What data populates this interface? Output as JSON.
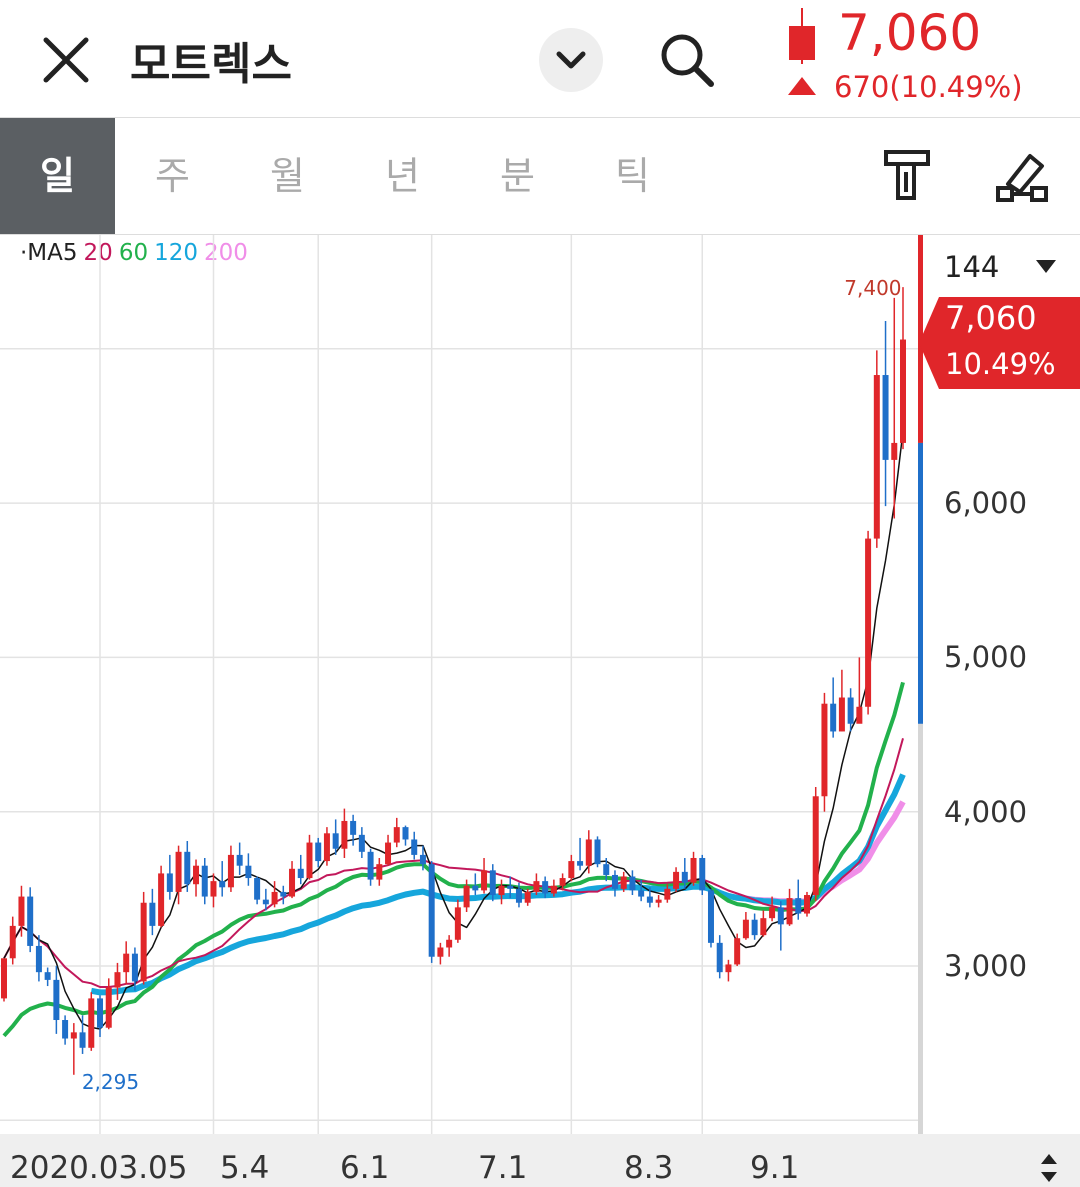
{
  "header": {
    "title": "모트렉스",
    "price": "7,060",
    "change": "670(10.49%)"
  },
  "tabs": [
    {
      "label": "일",
      "active": true
    },
    {
      "label": "주",
      "active": false
    },
    {
      "label": "월",
      "active": false
    },
    {
      "label": "년",
      "active": false
    },
    {
      "label": "분",
      "active": false
    },
    {
      "label": "틱",
      "active": false
    }
  ],
  "toolbar": {
    "indicator_icon": "tool-icon",
    "draw_icon": "pen-draw-icon"
  },
  "side": {
    "count": "144",
    "price_tag": "7,060",
    "pct_tag": "10.49%"
  },
  "legend": {
    "prefix": "·MA5",
    "items": [
      {
        "label": "20",
        "color": "#c2185b"
      },
      {
        "label": "60",
        "color": "#22b14c"
      },
      {
        "label": "120",
        "color": "#16a6dc"
      },
      {
        "label": "200",
        "color": "#f08ee8"
      }
    ]
  },
  "colors": {
    "up": "#e0262a",
    "down": "#1f6fc9",
    "ma5": "#111111"
  },
  "chart_data": {
    "type": "candlestick",
    "y_ticks": [
      "6,000",
      "5,000",
      "4,000",
      "3,000"
    ],
    "y_tick_values": [
      6000,
      5000,
      4000,
      3000
    ],
    "x_ticks": [
      "2020.03.05",
      "5.4",
      "6.1",
      "7.1",
      "8.3",
      "9.1"
    ],
    "annotations": [
      {
        "text": "7,400",
        "value": 7400,
        "kind": "high"
      },
      {
        "text": "2,295",
        "value": 2295,
        "kind": "low"
      }
    ],
    "last_close": 7060,
    "last_change_pct": "10.49%",
    "ma200_from_index": 84,
    "candles": [
      [
        2790,
        3050,
        2770,
        3050
      ],
      [
        3050,
        3320,
        3010,
        3260
      ],
      [
        3260,
        3520,
        3190,
        3450
      ],
      [
        3450,
        3510,
        3090,
        3130
      ],
      [
        3130,
        3200,
        2900,
        2960
      ],
      [
        2960,
        2990,
        2870,
        2910
      ],
      [
        2910,
        3000,
        2560,
        2650
      ],
      [
        2650,
        2680,
        2490,
        2530
      ],
      [
        2530,
        2630,
        2295,
        2570
      ],
      [
        2570,
        2680,
        2430,
        2470
      ],
      [
        2470,
        2830,
        2450,
        2790
      ],
      [
        2790,
        2810,
        2540,
        2600
      ],
      [
        2600,
        2920,
        2590,
        2860
      ],
      [
        2860,
        3020,
        2780,
        2960
      ],
      [
        2960,
        3160,
        2880,
        3080
      ],
      [
        3080,
        3120,
        2840,
        2900
      ],
      [
        2900,
        3480,
        2880,
        3410
      ],
      [
        3410,
        3500,
        3200,
        3260
      ],
      [
        3260,
        3650,
        3250,
        3600
      ],
      [
        3600,
        3720,
        3430,
        3480
      ],
      [
        3480,
        3780,
        3400,
        3740
      ],
      [
        3740,
        3810,
        3480,
        3530
      ],
      [
        3530,
        3690,
        3450,
        3650
      ],
      [
        3650,
        3700,
        3400,
        3450
      ],
      [
        3450,
        3600,
        3380,
        3550
      ],
      [
        3550,
        3680,
        3450,
        3510
      ],
      [
        3510,
        3780,
        3480,
        3720
      ],
      [
        3720,
        3800,
        3590,
        3650
      ],
      [
        3650,
        3730,
        3520,
        3570
      ],
      [
        3570,
        3580,
        3400,
        3430
      ],
      [
        3430,
        3500,
        3360,
        3400
      ],
      [
        3400,
        3550,
        3380,
        3480
      ],
      [
        3480,
        3520,
        3400,
        3450
      ],
      [
        3450,
        3680,
        3440,
        3630
      ],
      [
        3630,
        3720,
        3530,
        3570
      ],
      [
        3570,
        3850,
        3560,
        3800
      ],
      [
        3800,
        3830,
        3640,
        3680
      ],
      [
        3680,
        3900,
        3650,
        3860
      ],
      [
        3860,
        3950,
        3720,
        3760
      ],
      [
        3760,
        4020,
        3700,
        3940
      ],
      [
        3940,
        3980,
        3780,
        3850
      ],
      [
        3850,
        3900,
        3700,
        3740
      ],
      [
        3740,
        3760,
        3520,
        3560
      ],
      [
        3560,
        3700,
        3520,
        3660
      ],
      [
        3660,
        3850,
        3650,
        3800
      ],
      [
        3800,
        3960,
        3770,
        3900
      ],
      [
        3900,
        3910,
        3780,
        3820
      ],
      [
        3820,
        3870,
        3690,
        3720
      ],
      [
        3720,
        3780,
        3620,
        3660
      ],
      [
        3660,
        3680,
        3020,
        3060
      ],
      [
        3060,
        3150,
        3010,
        3120
      ],
      [
        3120,
        3200,
        3060,
        3170
      ],
      [
        3170,
        3430,
        3150,
        3380
      ],
      [
        3380,
        3560,
        3350,
        3520
      ],
      [
        3520,
        3600,
        3460,
        3490
      ],
      [
        3490,
        3700,
        3470,
        3620
      ],
      [
        3620,
        3660,
        3420,
        3460
      ],
      [
        3460,
        3560,
        3400,
        3520
      ],
      [
        3520,
        3580,
        3440,
        3500
      ],
      [
        3500,
        3540,
        3380,
        3410
      ],
      [
        3410,
        3500,
        3390,
        3480
      ],
      [
        3480,
        3600,
        3460,
        3550
      ],
      [
        3550,
        3580,
        3440,
        3470
      ],
      [
        3470,
        3560,
        3450,
        3520
      ],
      [
        3520,
        3600,
        3490,
        3570
      ],
      [
        3570,
        3720,
        3550,
        3680
      ],
      [
        3680,
        3830,
        3620,
        3650
      ],
      [
        3650,
        3880,
        3600,
        3820
      ],
      [
        3820,
        3840,
        3640,
        3660
      ],
      [
        3660,
        3700,
        3550,
        3590
      ],
      [
        3590,
        3620,
        3450,
        3500
      ],
      [
        3500,
        3610,
        3480,
        3580
      ],
      [
        3580,
        3620,
        3460,
        3490
      ],
      [
        3490,
        3560,
        3420,
        3450
      ],
      [
        3450,
        3510,
        3380,
        3410
      ],
      [
        3410,
        3460,
        3380,
        3430
      ],
      [
        3430,
        3530,
        3410,
        3500
      ],
      [
        3500,
        3640,
        3480,
        3610
      ],
      [
        3610,
        3700,
        3500,
        3540
      ],
      [
        3540,
        3740,
        3520,
        3700
      ],
      [
        3700,
        3720,
        3460,
        3490
      ],
      [
        3490,
        3500,
        3120,
        3150
      ],
      [
        3150,
        3200,
        2920,
        2960
      ],
      [
        2960,
        3040,
        2900,
        3010
      ],
      [
        3010,
        3210,
        3000,
        3180
      ],
      [
        3180,
        3350,
        3170,
        3300
      ],
      [
        3300,
        3340,
        3170,
        3200
      ],
      [
        3200,
        3360,
        3190,
        3310
      ],
      [
        3310,
        3450,
        3290,
        3380
      ],
      [
        3380,
        3420,
        3100,
        3270
      ],
      [
        3270,
        3500,
        3260,
        3440
      ],
      [
        3440,
        3560,
        3300,
        3340
      ],
      [
        3340,
        3480,
        3320,
        3460
      ],
      [
        3460,
        4160,
        3420,
        4100
      ],
      [
        4100,
        4770,
        4000,
        4700
      ],
      [
        4700,
        4870,
        4480,
        4520
      ],
      [
        4520,
        4920,
        4520,
        4740
      ],
      [
        4740,
        4800,
        4520,
        4570
      ],
      [
        4570,
        5000,
        4580,
        4680
      ],
      [
        4680,
        5820,
        4630,
        5770
      ],
      [
        5770,
        6990,
        5710,
        6830
      ],
      [
        6830,
        7180,
        5980,
        6280
      ],
      [
        6280,
        7330,
        5900,
        6390
      ],
      [
        6390,
        7400,
        6350,
        7060
      ]
    ]
  }
}
